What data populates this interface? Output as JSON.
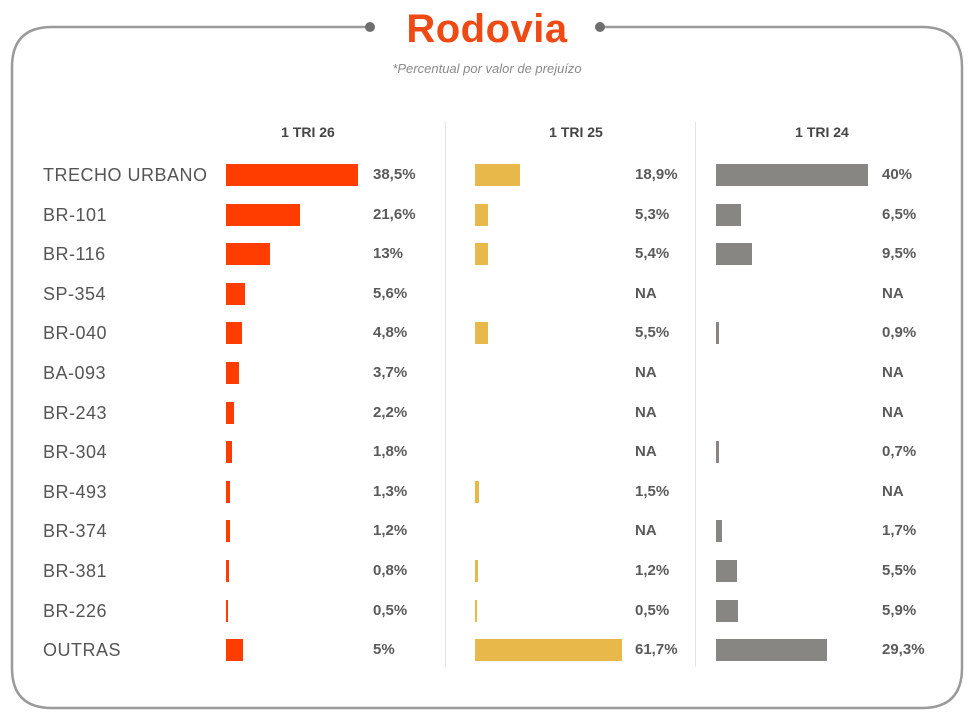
{
  "chart_data": {
    "type": "bar",
    "title": "Rodovia",
    "subtitle": "*Percentual por valor de prejuízo",
    "categories": [
      "TRECHO URBANO",
      "BR-101",
      "BR-116",
      "SP-354",
      "BR-040",
      "BA-093",
      "BR-243",
      "BR-304",
      "BR-493",
      "BR-374",
      "BR-381",
      "BR-226",
      "OUTRAS"
    ],
    "series": [
      {
        "name": "1 TRI 26",
        "color": "#ff3d00",
        "values": [
          38.5,
          21.6,
          13,
          5.6,
          4.8,
          3.7,
          2.2,
          1.8,
          1.3,
          1.2,
          0.8,
          0.5,
          5
        ],
        "labels": [
          "38,5%",
          "21,6%",
          "13%",
          "5,6%",
          "4,8%",
          "3,7%",
          "2,2%",
          "1,8%",
          "1,3%",
          "1,2%",
          "0,8%",
          "0,5%",
          "5%"
        ]
      },
      {
        "name": "1 TRI 25",
        "color": "#e8b84b",
        "values": [
          18.9,
          5.3,
          5.4,
          null,
          5.5,
          null,
          null,
          null,
          1.5,
          null,
          1.2,
          0.5,
          61.7
        ],
        "labels": [
          "18,9%",
          "5,3%",
          "5,4%",
          "NA",
          "5,5%",
          "NA",
          "NA",
          "NA",
          "1,5%",
          "NA",
          "1,2%",
          "0,5%",
          "61,7%"
        ]
      },
      {
        "name": "1 TRI 24",
        "color": "#878683",
        "values": [
          40,
          6.5,
          9.5,
          null,
          0.9,
          null,
          null,
          0.7,
          null,
          1.7,
          5.5,
          5.9,
          29.3
        ],
        "labels": [
          "40%",
          "6,5%",
          "9,5%",
          "NA",
          "0,9%",
          "NA",
          "NA",
          "0,7%",
          "NA",
          "1,7%",
          "5,5%",
          "5,9%",
          "29,3%"
        ]
      }
    ],
    "xlabel": "",
    "ylabel": "",
    "grid": false,
    "legend": "none"
  }
}
